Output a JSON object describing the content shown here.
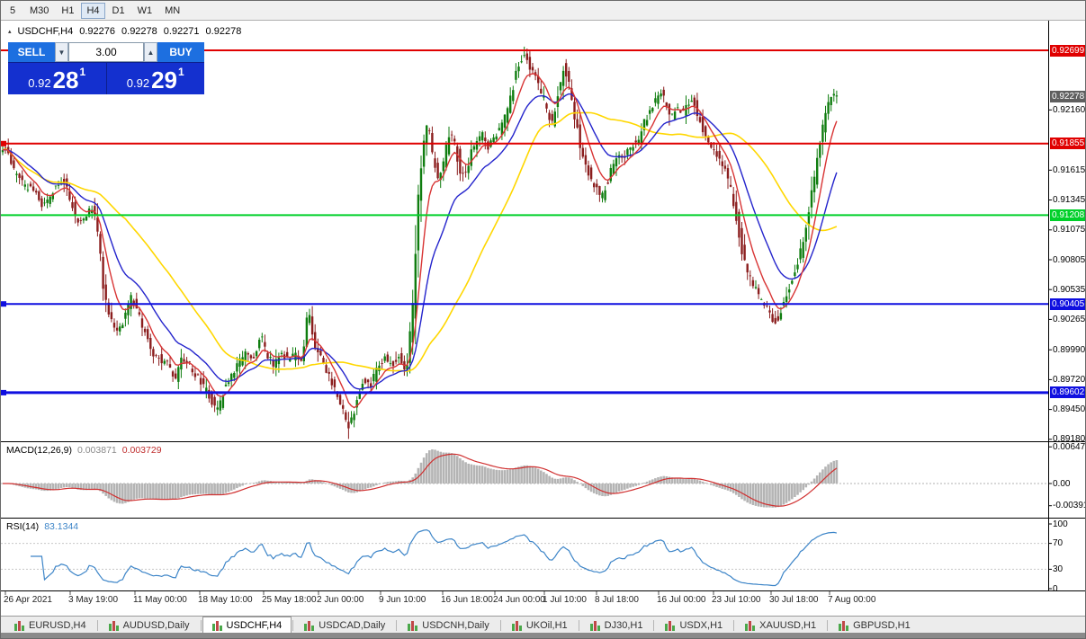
{
  "toolbar": {
    "timeframes": [
      {
        "label": "5",
        "active": false
      },
      {
        "label": "M30",
        "active": false
      },
      {
        "label": "H1",
        "active": false
      },
      {
        "label": "H4",
        "active": true
      },
      {
        "label": "D1",
        "active": false
      },
      {
        "label": "W1",
        "active": false
      },
      {
        "label": "MN",
        "active": false
      }
    ]
  },
  "chart": {
    "header": {
      "toggle_icon": "▴",
      "symbol": "USDCHF,H4",
      "open": "0.92276",
      "high": "0.92278",
      "low": "0.92271",
      "close": "0.92278"
    },
    "trade_panel": {
      "sell_label": "SELL",
      "buy_label": "BUY",
      "volume": "3.00",
      "spin_down": "▼",
      "spin_up": "▲",
      "bid": {
        "small": "0.92",
        "big": "28",
        "sup": "1"
      },
      "ask": {
        "small": "0.92",
        "big": "29",
        "sup": "1"
      }
    },
    "hlines": [
      {
        "price": 0.92699,
        "label": "0.92699",
        "color": "#e00000",
        "width": 2,
        "marker": false
      },
      {
        "price": 0.91855,
        "label": "0.91855",
        "color": "#e00000",
        "width": 2,
        "marker": true
      },
      {
        "price": 0.91208,
        "label": "0.91208",
        "color": "#00d02a",
        "width": 2,
        "marker": false
      },
      {
        "price": 0.90405,
        "label": "0.90405",
        "color": "#0f0fe0",
        "width": 2,
        "marker": true
      },
      {
        "price": 0.89602,
        "label": "0.89602",
        "color": "#0f0fe0",
        "width": 3,
        "marker": true
      }
    ],
    "price_marker": {
      "price": 0.92278,
      "label": "0.92278",
      "color": "#5f5f5f"
    },
    "scale_labels": [
      "0.92160",
      "0.91615",
      "0.91345",
      "0.91075",
      "0.90805",
      "0.90535",
      "0.90265",
      "0.89990",
      "0.89720",
      "0.89450",
      "0.89180"
    ]
  },
  "macd": {
    "title": "MACD(12,26,9)",
    "value_main": "0.003871",
    "value_signal": "0.003729",
    "scale": [
      "0.00647",
      "0.00",
      "-0.003916"
    ]
  },
  "rsi": {
    "title": "RSI(14)",
    "value": "83.1344",
    "scale": [
      "100",
      "70",
      "30",
      "0"
    ]
  },
  "time_axis": [
    "26 Apr 2021",
    "3 May 19:00",
    "11 May 00:00",
    "18 May 10:00",
    "25 May 18:00",
    "2 Jun 00:00",
    "9 Jun 10:00",
    "16 Jun 18:00",
    "24 Jun 00:00",
    "1 Jul 10:00",
    "8 Jul 18:00",
    "16 Jul 00:00",
    "23 Jul 10:00",
    "30 Jul 18:00",
    "7 Aug 00:00"
  ],
  "tabs": [
    {
      "label": "EURUSD,H4",
      "active": false
    },
    {
      "label": "AUDUSD,Daily",
      "active": false
    },
    {
      "label": "USDCHF,H4",
      "active": true
    },
    {
      "label": "USDCAD,Daily",
      "active": false
    },
    {
      "label": "USDCNH,Daily",
      "active": false
    },
    {
      "label": "UKOil,H1",
      "active": false
    },
    {
      "label": "DJ30,H1",
      "active": false
    },
    {
      "label": "USDX,H1",
      "active": false
    },
    {
      "label": "XAUUSD,H1",
      "active": false
    },
    {
      "label": "GBPUSD,H1",
      "active": false
    }
  ],
  "chart_data": {
    "type": "candlestick",
    "symbol": "USDCHF",
    "timeframe": "H4",
    "ohlc_current": {
      "open": 0.92276,
      "high": 0.92278,
      "low": 0.92271,
      "close": 0.92278
    },
    "y_range": [
      0.8918,
      0.92699
    ],
    "x_range_labels": [
      "26 Apr 2021",
      "7 Aug 00:00"
    ],
    "horizontal_levels": [
      0.92699,
      0.91855,
      0.91208,
      0.90405,
      0.89602
    ],
    "current_bid": 0.92278,
    "indicators": {
      "macd_main": 0.003871,
      "macd_signal": 0.003729,
      "rsi": 83.1344
    },
    "style": {
      "candle_up": "#0f7d0f",
      "candle_down": "#8b1e1e",
      "ma_fast": "#d83434",
      "ma_medium": "#2424cc",
      "ma_slow": "#ffd700",
      "macd_histogram": "#b4b4b4",
      "macd_signal": "#d03030",
      "rsi_line": "#3d85c8"
    },
    "price_anchors": [
      [
        0,
        0.9168
      ],
      [
        6,
        0.9182
      ],
      [
        12,
        0.9175
      ],
      [
        18,
        0.9158
      ],
      [
        26,
        0.915
      ],
      [
        34,
        0.9146
      ],
      [
        42,
        0.914
      ],
      [
        50,
        0.9128
      ],
      [
        58,
        0.914
      ],
      [
        66,
        0.915
      ],
      [
        74,
        0.9152
      ],
      [
        82,
        0.913
      ],
      [
        90,
        0.911
      ],
      [
        98,
        0.9122
      ],
      [
        106,
        0.9128
      ],
      [
        112,
        0.9095
      ],
      [
        118,
        0.9048
      ],
      [
        126,
        0.9026
      ],
      [
        134,
        0.9014
      ],
      [
        142,
        0.9034
      ],
      [
        148,
        0.9048
      ],
      [
        156,
        0.9032
      ],
      [
        164,
        0.9012
      ],
      [
        172,
        0.8996
      ],
      [
        180,
        0.899
      ],
      [
        188,
        0.8986
      ],
      [
        196,
        0.8972
      ],
      [
        204,
        0.8992
      ],
      [
        212,
        0.8986
      ],
      [
        220,
        0.8976
      ],
      [
        228,
        0.8966
      ],
      [
        236,
        0.8954
      ],
      [
        244,
        0.8944
      ],
      [
        252,
        0.8966
      ],
      [
        260,
        0.8976
      ],
      [
        268,
        0.8988
      ],
      [
        276,
        0.8996
      ],
      [
        284,
        0.899
      ],
      [
        292,
        0.9018
      ],
      [
        298,
        0.8996
      ],
      [
        306,
        0.8986
      ],
      [
        314,
        0.8998
      ],
      [
        322,
        0.899
      ],
      [
        330,
        0.8994
      ],
      [
        338,
        0.899
      ],
      [
        345,
        0.904
      ],
      [
        351,
        0.9002
      ],
      [
        358,
        0.8992
      ],
      [
        366,
        0.8978
      ],
      [
        374,
        0.8962
      ],
      [
        382,
        0.8948
      ],
      [
        390,
        0.8929
      ],
      [
        398,
        0.8952
      ],
      [
        406,
        0.8972
      ],
      [
        414,
        0.8966
      ],
      [
        422,
        0.8984
      ],
      [
        430,
        0.8992
      ],
      [
        438,
        0.8984
      ],
      [
        446,
        0.8992
      ],
      [
        453,
        0.8978
      ],
      [
        460,
        0.903
      ],
      [
        466,
        0.912
      ],
      [
        472,
        0.918
      ],
      [
        478,
        0.9208
      ],
      [
        484,
        0.9168
      ],
      [
        490,
        0.9152
      ],
      [
        496,
        0.9172
      ],
      [
        502,
        0.9196
      ],
      [
        508,
        0.9188
      ],
      [
        514,
        0.9152
      ],
      [
        520,
        0.9162
      ],
      [
        526,
        0.9178
      ],
      [
        532,
        0.9186
      ],
      [
        538,
        0.9196
      ],
      [
        544,
        0.9182
      ],
      [
        550,
        0.919
      ],
      [
        556,
        0.9196
      ],
      [
        562,
        0.9206
      ],
      [
        568,
        0.9224
      ],
      [
        574,
        0.9244
      ],
      [
        580,
        0.9258
      ],
      [
        586,
        0.9267
      ],
      [
        592,
        0.9252
      ],
      [
        598,
        0.9246
      ],
      [
        604,
        0.9232
      ],
      [
        610,
        0.9216
      ],
      [
        616,
        0.9202
      ],
      [
        622,
        0.9228
      ],
      [
        628,
        0.9254
      ],
      [
        634,
        0.9242
      ],
      [
        640,
        0.9212
      ],
      [
        646,
        0.9188
      ],
      [
        652,
        0.9172
      ],
      [
        658,
        0.9156
      ],
      [
        664,
        0.9146
      ],
      [
        670,
        0.9136
      ],
      [
        676,
        0.9148
      ],
      [
        682,
        0.9164
      ],
      [
        688,
        0.9174
      ],
      [
        694,
        0.917
      ],
      [
        700,
        0.918
      ],
      [
        706,
        0.9186
      ],
      [
        712,
        0.919
      ],
      [
        718,
        0.9204
      ],
      [
        724,
        0.9214
      ],
      [
        730,
        0.9224
      ],
      [
        736,
        0.9234
      ],
      [
        742,
        0.9222
      ],
      [
        748,
        0.921
      ],
      [
        754,
        0.9218
      ],
      [
        760,
        0.9212
      ],
      [
        766,
        0.922
      ],
      [
        772,
        0.9228
      ],
      [
        778,
        0.921
      ],
      [
        784,
        0.9196
      ],
      [
        790,
        0.9186
      ],
      [
        796,
        0.918
      ],
      [
        802,
        0.917
      ],
      [
        808,
        0.916
      ],
      [
        814,
        0.9146
      ],
      [
        820,
        0.9122
      ],
      [
        826,
        0.9092
      ],
      [
        832,
        0.9072
      ],
      [
        838,
        0.906
      ],
      [
        844,
        0.905
      ],
      [
        850,
        0.9042
      ],
      [
        856,
        0.9035
      ],
      [
        862,
        0.9022
      ],
      [
        868,
        0.903
      ],
      [
        874,
        0.9044
      ],
      [
        880,
        0.9058
      ],
      [
        886,
        0.9068
      ],
      [
        892,
        0.9088
      ],
      [
        898,
        0.9108
      ],
      [
        904,
        0.9138
      ],
      [
        910,
        0.9168
      ],
      [
        916,
        0.9198
      ],
      [
        922,
        0.9222
      ],
      [
        928,
        0.9228
      ]
    ]
  }
}
